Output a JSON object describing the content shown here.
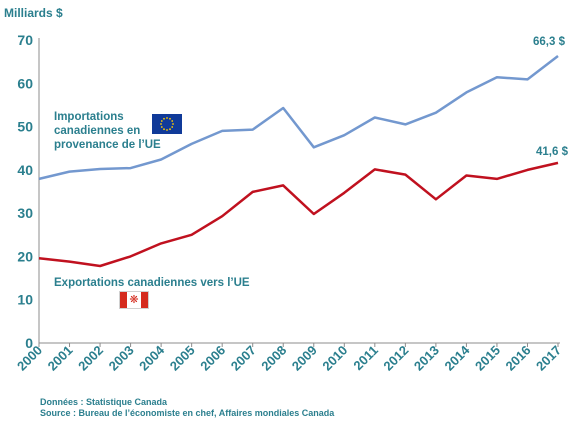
{
  "chart_data": {
    "type": "line",
    "ylabel": "Milliards $",
    "xlabel": "",
    "ylim": [
      0,
      70
    ],
    "yticks": [
      0,
      10,
      20,
      30,
      40,
      50,
      60,
      70
    ],
    "grid": false,
    "categories": [
      "2000",
      "2001",
      "2002",
      "2003",
      "2004",
      "2005",
      "2006",
      "2007",
      "2008",
      "2009",
      "2010",
      "2011",
      "2012",
      "2013",
      "2014",
      "2015",
      "2016",
      "2017"
    ],
    "series": [
      {
        "name": "Importations canadiennes en provenance de l’UE",
        "color": "#7398cf",
        "values": [
          37.9,
          39.6,
          40.2,
          40.4,
          42.4,
          46.0,
          49.0,
          49.3,
          54.3,
          45.2,
          48.0,
          52.1,
          50.5,
          53.2,
          57.9,
          61.4,
          60.9,
          66.3
        ],
        "end_label": "66,3 $"
      },
      {
        "name": "Exportations canadiennes vers l’UE",
        "color": "#c0111f",
        "values": [
          19.6,
          18.8,
          17.8,
          20.0,
          23.0,
          25.0,
          29.3,
          34.9,
          36.4,
          29.8,
          34.7,
          40.1,
          38.9,
          33.2,
          38.7,
          37.9,
          40.0,
          41.6
        ],
        "end_label": "41,6 $"
      }
    ],
    "footnotes": [
      "Données : Statistique Canada",
      "Source : Bureau de l’économiste  en chef, Affaires mondiales  Canada"
    ]
  },
  "icons": {
    "eu_flag": "eu-flag-icon",
    "canada_flag": "canada-flag-icon",
    "colors": {
      "text": "#2b7f8e",
      "eu_blue": "#103a99",
      "eu_stars": "#ffcc00",
      "canada_red": "#d52b1e"
    }
  }
}
